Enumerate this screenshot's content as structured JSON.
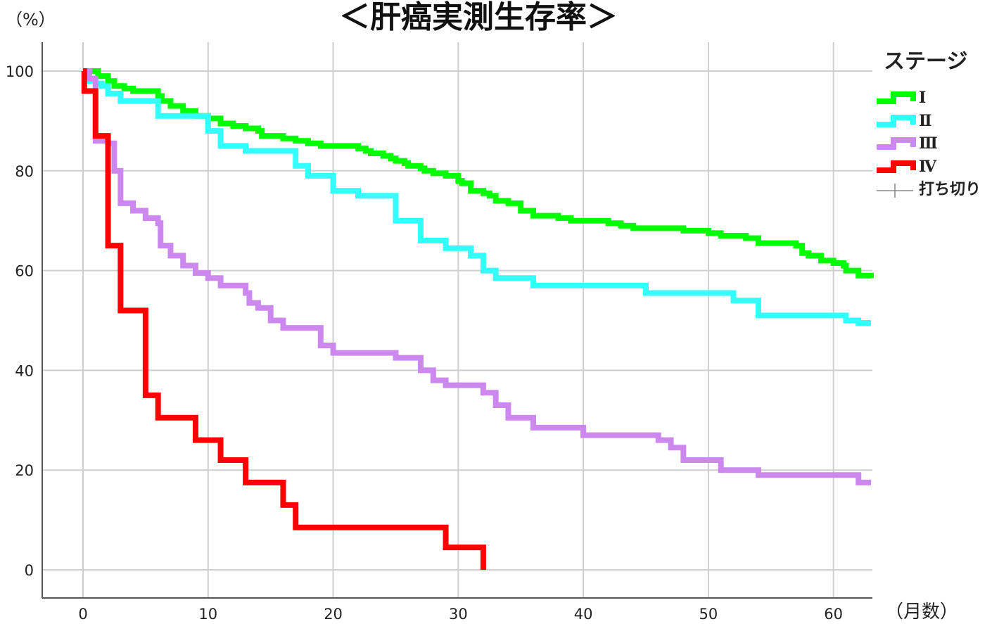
{
  "title": "＜肝癌実測生存率＞",
  "y_unit": "（%）",
  "x_unit": "（月数）",
  "legend": {
    "title": "ステージ",
    "items": [
      {
        "label": "Ⅰ",
        "color": "#00ff00"
      },
      {
        "label": "Ⅱ",
        "color": "#33ffff"
      },
      {
        "label": "Ⅲ",
        "color": "#cc88ee"
      },
      {
        "label": "Ⅳ",
        "color": "#ff0000"
      },
      {
        "label": "打ち切り",
        "color": "#888888",
        "kind": "censor"
      }
    ]
  },
  "chart_data": {
    "type": "line",
    "step": true,
    "xlim": [
      0,
      63
    ],
    "ylim": [
      0,
      100
    ],
    "x_ticks": [
      0,
      10,
      20,
      30,
      40,
      50,
      60
    ],
    "y_ticks": [
      0,
      20,
      40,
      60,
      80,
      100
    ],
    "grid": true,
    "legend_position": "right",
    "series": [
      {
        "name": "Ⅰ",
        "color": "#00ff00",
        "points": [
          [
            0,
            100
          ],
          [
            1.2,
            99
          ],
          [
            2,
            98
          ],
          [
            2.5,
            97
          ],
          [
            3.3,
            96.5
          ],
          [
            4,
            96
          ],
          [
            6,
            95
          ],
          [
            6.3,
            94
          ],
          [
            7,
            93
          ],
          [
            8,
            92
          ],
          [
            9,
            91
          ],
          [
            10,
            90.5
          ],
          [
            11,
            89.5
          ],
          [
            12,
            89
          ],
          [
            13,
            88.5
          ],
          [
            14,
            88
          ],
          [
            14.3,
            87
          ],
          [
            16,
            86.5
          ],
          [
            17,
            86
          ],
          [
            18,
            85.5
          ],
          [
            19,
            85
          ],
          [
            22,
            84.5
          ],
          [
            22.6,
            84
          ],
          [
            23,
            83.5
          ],
          [
            24,
            83
          ],
          [
            24.6,
            82.5
          ],
          [
            25,
            82
          ],
          [
            25.7,
            81.5
          ],
          [
            26,
            81
          ],
          [
            27,
            80.5
          ],
          [
            27.3,
            80
          ],
          [
            28,
            79.5
          ],
          [
            29,
            79
          ],
          [
            30,
            78
          ],
          [
            30.3,
            77.5
          ],
          [
            31,
            76
          ],
          [
            32,
            75.5
          ],
          [
            32.5,
            75
          ],
          [
            33,
            74
          ],
          [
            34,
            73.5
          ],
          [
            35,
            72
          ],
          [
            36,
            71
          ],
          [
            38,
            70.5
          ],
          [
            39,
            70
          ],
          [
            42,
            69.5
          ],
          [
            43,
            69
          ],
          [
            44,
            68.5
          ],
          [
            48,
            68
          ],
          [
            50,
            67.5
          ],
          [
            51,
            67
          ],
          [
            53,
            66.5
          ],
          [
            54,
            65.5
          ],
          [
            57,
            65
          ],
          [
            57.5,
            63.5
          ],
          [
            58,
            63
          ],
          [
            59,
            62
          ],
          [
            60,
            61.5
          ],
          [
            60.8,
            61
          ],
          [
            61,
            60
          ],
          [
            62,
            59
          ],
          [
            63,
            58.5
          ]
        ]
      },
      {
        "name": "Ⅱ",
        "color": "#33ffff",
        "points": [
          [
            0,
            100
          ],
          [
            0.5,
            98
          ],
          [
            1,
            97.5
          ],
          [
            1.5,
            97
          ],
          [
            2,
            95.5
          ],
          [
            3,
            94
          ],
          [
            6,
            91
          ],
          [
            10,
            88
          ],
          [
            11,
            85
          ],
          [
            13,
            84
          ],
          [
            17,
            81
          ],
          [
            18,
            79
          ],
          [
            20,
            76
          ],
          [
            22,
            75
          ],
          [
            25,
            70
          ],
          [
            27,
            66
          ],
          [
            29,
            64.5
          ],
          [
            31,
            63
          ],
          [
            32,
            60
          ],
          [
            33,
            58.5
          ],
          [
            36,
            57
          ],
          [
            45,
            55.5
          ],
          [
            52,
            54
          ],
          [
            54,
            51
          ],
          [
            61,
            50
          ],
          [
            62,
            49.5
          ],
          [
            63,
            49.5
          ]
        ]
      },
      {
        "name": "Ⅲ",
        "color": "#cc88ee",
        "points": [
          [
            0,
            100
          ],
          [
            0.5,
            98.5
          ],
          [
            1,
            86
          ],
          [
            2,
            85.5
          ],
          [
            2.5,
            80
          ],
          [
            3,
            73.5
          ],
          [
            4,
            72
          ],
          [
            5,
            70.5
          ],
          [
            6,
            69.5
          ],
          [
            6.2,
            65
          ],
          [
            7,
            63
          ],
          [
            8,
            61
          ],
          [
            9,
            59.5
          ],
          [
            10,
            58.5
          ],
          [
            11,
            57
          ],
          [
            13,
            55.5
          ],
          [
            13.3,
            53.5
          ],
          [
            14,
            52.5
          ],
          [
            15,
            50
          ],
          [
            16,
            48.5
          ],
          [
            19,
            45
          ],
          [
            20,
            43.5
          ],
          [
            25,
            42.5
          ],
          [
            27,
            40
          ],
          [
            28,
            38
          ],
          [
            29,
            37
          ],
          [
            32,
            35.5
          ],
          [
            33,
            33
          ],
          [
            34,
            30.5
          ],
          [
            36,
            28.5
          ],
          [
            40,
            27
          ],
          [
            46,
            26
          ],
          [
            47,
            24.5
          ],
          [
            48,
            22
          ],
          [
            51,
            20
          ],
          [
            54,
            19
          ],
          [
            62,
            17.5
          ],
          [
            63,
            17.5
          ]
        ]
      },
      {
        "name": "Ⅳ",
        "color": "#ff0000",
        "points": [
          [
            0,
            100
          ],
          [
            0.1,
            96
          ],
          [
            1,
            96
          ],
          [
            1,
            87
          ],
          [
            2,
            87
          ],
          [
            2,
            65
          ],
          [
            3,
            65
          ],
          [
            3,
            52
          ],
          [
            5,
            52
          ],
          [
            5,
            35
          ],
          [
            6,
            35
          ],
          [
            6,
            30.5
          ],
          [
            9,
            30.5
          ],
          [
            9,
            26
          ],
          [
            11,
            26
          ],
          [
            11,
            22
          ],
          [
            13,
            22
          ],
          [
            13,
            17.5
          ],
          [
            16,
            17.5
          ],
          [
            16,
            13
          ],
          [
            17,
            13
          ],
          [
            17,
            8.5
          ],
          [
            29,
            8.5
          ],
          [
            29,
            4.5
          ],
          [
            32,
            4.5
          ],
          [
            32,
            0
          ]
        ]
      }
    ]
  }
}
